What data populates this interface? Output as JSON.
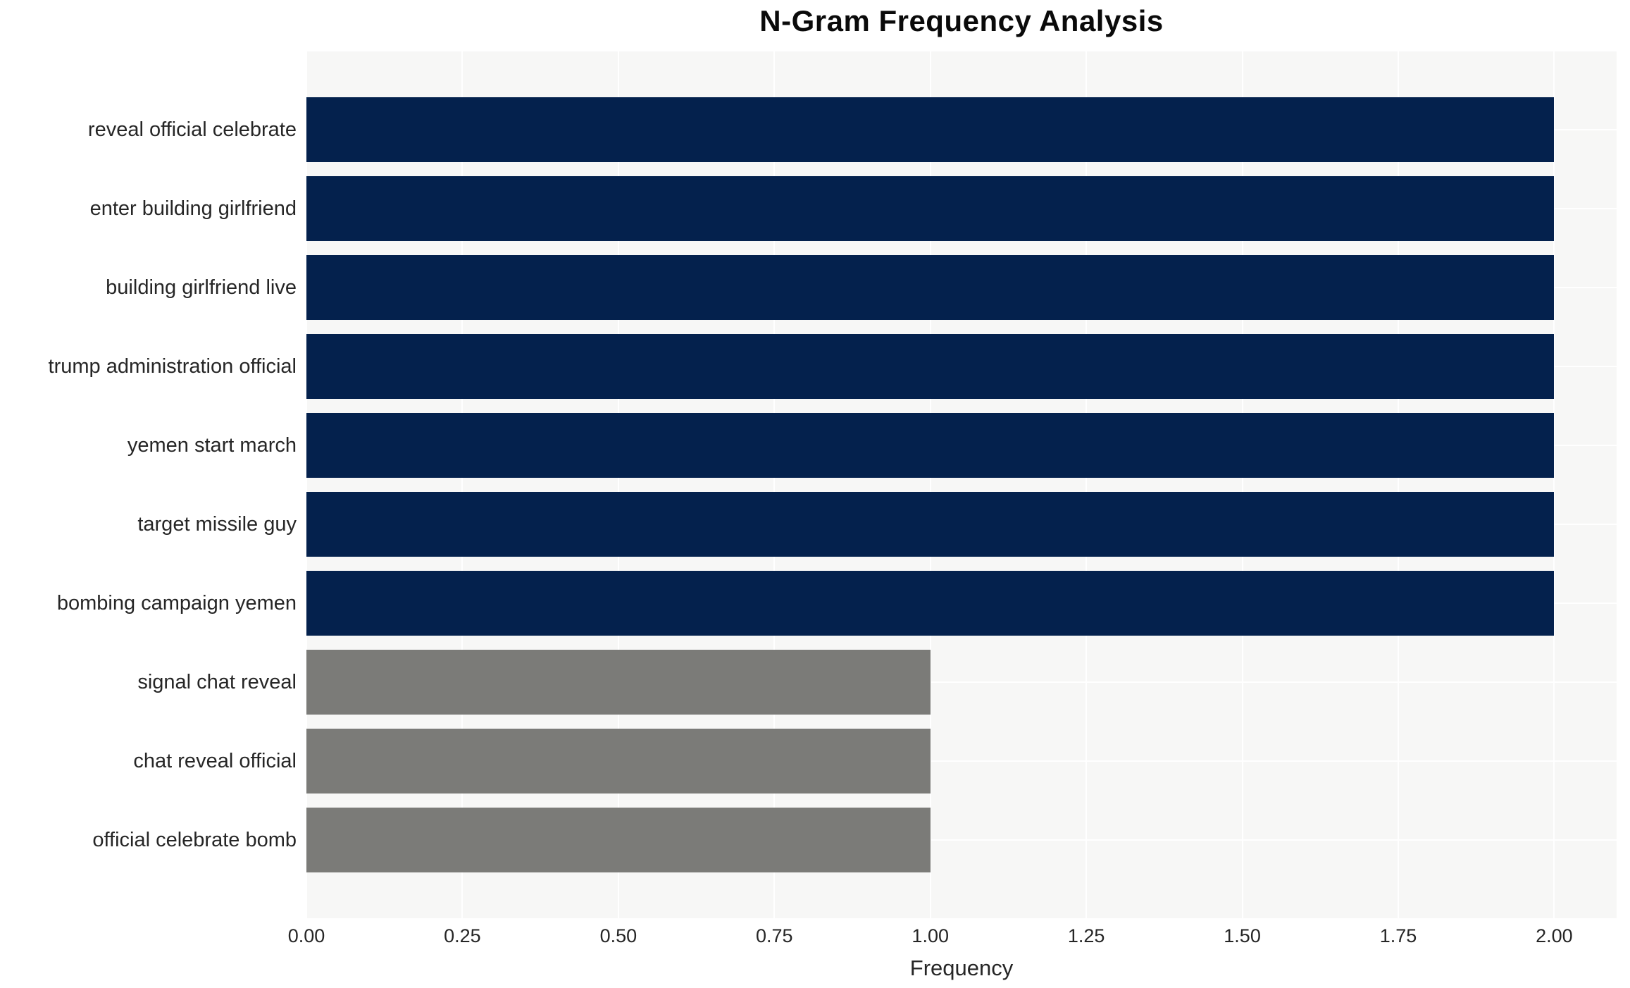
{
  "chart_data": {
    "type": "bar",
    "orientation": "horizontal",
    "title": "N-Gram Frequency Analysis",
    "xlabel": "Frequency",
    "ylabel": "",
    "categories": [
      "reveal official celebrate",
      "enter building girlfriend",
      "building girlfriend live",
      "trump administration official",
      "yemen start march",
      "target missile guy",
      "bombing campaign yemen",
      "signal chat reveal",
      "chat reveal official",
      "official celebrate bomb"
    ],
    "values": [
      2,
      2,
      2,
      2,
      2,
      2,
      2,
      1,
      1,
      1
    ],
    "bar_colors": [
      "#04214d",
      "#04214d",
      "#04214d",
      "#04214d",
      "#04214d",
      "#04214d",
      "#04214d",
      "#7b7b78",
      "#7b7b78",
      "#7b7b78"
    ],
    "xticks": [
      "0.00",
      "0.25",
      "0.50",
      "0.75",
      "1.00",
      "1.25",
      "1.50",
      "1.75",
      "2.00"
    ],
    "xtick_values": [
      0,
      0.25,
      0.5,
      0.75,
      1.0,
      1.25,
      1.5,
      1.75,
      2.0
    ],
    "xlim": [
      0,
      2.1
    ],
    "grid": true,
    "grid_color": "#ffffff",
    "plot_background": "#f7f7f6",
    "legend": false
  },
  "style": {
    "bar_color_freq2": "#04214d",
    "bar_color_freq1": "#7b7b78",
    "text_color": "#262626",
    "title_color": "#0a0a0a",
    "page_background": "#ffffff"
  }
}
